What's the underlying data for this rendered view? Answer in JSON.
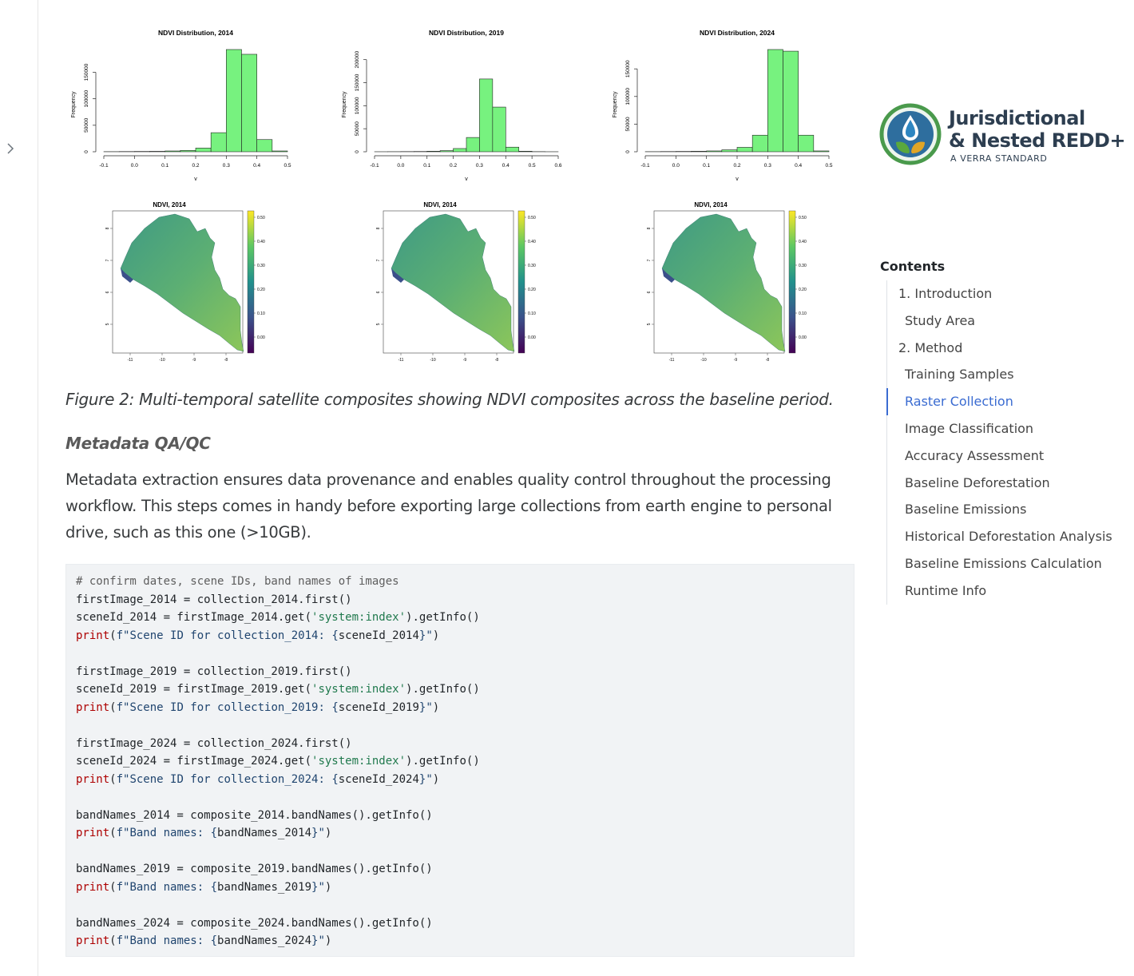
{
  "sidebar_toggle": {
    "icon": "chevron-right-icon",
    "glyph": "›"
  },
  "figures": {
    "histograms": [
      {
        "title": "NDVI Distribution, 2014",
        "ylabel": "Frequency",
        "xlabel": "v",
        "x_ticks": [
          "-0.1",
          "0.0",
          "0.1",
          "0.2",
          "0.3",
          "0.4",
          "0.5"
        ],
        "y_ticks": [
          "0",
          "50000",
          "100000",
          "150000"
        ]
      },
      {
        "title": "NDVI Distribution, 2019",
        "ylabel": "Frequency",
        "xlabel": "v",
        "x_ticks": [
          "-0.1",
          "0.0",
          "0.1",
          "0.2",
          "0.3",
          "0.4",
          "0.5",
          "0.6"
        ],
        "y_ticks": [
          "0",
          "50000",
          "100000",
          "150000",
          "200000"
        ]
      },
      {
        "title": "NDVI Distribution, 2024",
        "ylabel": "Frequency",
        "xlabel": "v",
        "x_ticks": [
          "-0.1",
          "0.0",
          "0.1",
          "0.2",
          "0.3",
          "0.4",
          "0.5"
        ],
        "y_ticks": [
          "0",
          "50000",
          "100000",
          "150000"
        ]
      }
    ],
    "maps": [
      {
        "title": "NDVI, 2014",
        "x_ticks": [
          "-11",
          "-10",
          "-9",
          "-8"
        ],
        "y_ticks": [
          "8",
          "7",
          "6",
          "5"
        ],
        "legend_ticks": [
          "0.50",
          "0.40",
          "0.30",
          "0.20",
          "0.10",
          "0.00"
        ]
      },
      {
        "title": "NDVI, 2014",
        "x_ticks": [
          "-11",
          "-10",
          "-9",
          "-8"
        ],
        "y_ticks": [
          "8",
          "7",
          "6",
          "5"
        ],
        "legend_ticks": [
          "0.50",
          "0.40",
          "0.30",
          "0.20",
          "0.10",
          "0.00"
        ]
      },
      {
        "title": "NDVI, 2014",
        "x_ticks": [
          "-11",
          "-10",
          "-9",
          "-8"
        ],
        "y_ticks": [
          "8",
          "7",
          "6",
          "5"
        ],
        "legend_ticks": [
          "0.50",
          "0.40",
          "0.30",
          "0.20",
          "0.10",
          "0.00"
        ]
      }
    ],
    "colors": {
      "bar_fill": "#77f27f",
      "map_low": "#440154",
      "map_mid": "#3a8d8c",
      "map_high": "#c5df3a"
    }
  },
  "chart_data": [
    {
      "type": "bar",
      "title": "NDVI Distribution, 2014",
      "xlabel": "v",
      "ylabel": "Frequency",
      "bin_edges": [
        -0.1,
        -0.05,
        0.0,
        0.05,
        0.1,
        0.15,
        0.2,
        0.25,
        0.3,
        0.35,
        0.4,
        0.45,
        0.5
      ],
      "values": [
        200,
        400,
        600,
        800,
        1500,
        2500,
        7000,
        36000,
        193000,
        184000,
        23000,
        1500
      ],
      "xlim": [
        -0.1,
        0.5
      ],
      "ylim": [
        0,
        193000
      ]
    },
    {
      "type": "bar",
      "title": "NDVI Distribution, 2019",
      "xlabel": "v",
      "ylabel": "Frequency",
      "bin_edges": [
        -0.1,
        -0.05,
        0.0,
        0.05,
        0.1,
        0.15,
        0.2,
        0.25,
        0.3,
        0.35,
        0.4,
        0.45,
        0.5,
        0.55,
        0.6
      ],
      "values": [
        100,
        200,
        400,
        600,
        1200,
        2500,
        7000,
        31000,
        158000,
        97000,
        10000,
        1200,
        300,
        100
      ],
      "xlim": [
        -0.1,
        0.6
      ],
      "ylim": [
        0,
        222000
      ]
    },
    {
      "type": "bar",
      "title": "NDVI Distribution, 2024",
      "xlabel": "v",
      "ylabel": "Frequency",
      "bin_edges": [
        -0.1,
        -0.05,
        0.0,
        0.05,
        0.1,
        0.15,
        0.2,
        0.25,
        0.3,
        0.35,
        0.4,
        0.45,
        0.5
      ],
      "values": [
        200,
        400,
        600,
        900,
        1500,
        3500,
        8000,
        30000,
        185000,
        182000,
        30000,
        1500
      ],
      "xlim": [
        -0.1,
        0.5
      ],
      "ylim": [
        0,
        185000
      ]
    }
  ],
  "caption": "Figure 2: Multi-temporal satellite composites showing NDVI composites across the baseline period.",
  "section_heading": "Metadata QA/QC",
  "paragraph": "Metadata extraction ensures data provenance and enables quality control throughout the processing workflow. This steps comes in handy before exporting large collections from earth engine to personal drive, such as this one (>10GB).",
  "code_lines": [
    [
      {
        "t": "# confirm dates, scene IDs, band names of images",
        "c": "comment"
      }
    ],
    [
      {
        "t": "firstImage_2014 = collection_2014.first()",
        "c": ""
      }
    ],
    [
      {
        "t": "sceneId_2014 = firstImage_2014.get(",
        "c": ""
      },
      {
        "t": "'system:index'",
        "c": "str"
      },
      {
        "t": ").getInfo()",
        "c": ""
      }
    ],
    [
      {
        "t": "print",
        "c": "print"
      },
      {
        "t": "(",
        "c": ""
      },
      {
        "t": "f\"Scene ID for collection_2014: {",
        "c": "fstr"
      },
      {
        "t": "sceneId_2014",
        "c": ""
      },
      {
        "t": "}\"",
        "c": "fstr"
      },
      {
        "t": ")",
        "c": ""
      }
    ],
    [
      {
        "t": "",
        "c": ""
      }
    ],
    [
      {
        "t": "firstImage_2019 = collection_2019.first()",
        "c": ""
      }
    ],
    [
      {
        "t": "sceneId_2019 = firstImage_2019.get(",
        "c": ""
      },
      {
        "t": "'system:index'",
        "c": "str"
      },
      {
        "t": ").getInfo()",
        "c": ""
      }
    ],
    [
      {
        "t": "print",
        "c": "print"
      },
      {
        "t": "(",
        "c": ""
      },
      {
        "t": "f\"Scene ID for collection_2019: {",
        "c": "fstr"
      },
      {
        "t": "sceneId_2019",
        "c": ""
      },
      {
        "t": "}\"",
        "c": "fstr"
      },
      {
        "t": ")",
        "c": ""
      }
    ],
    [
      {
        "t": "",
        "c": ""
      }
    ],
    [
      {
        "t": "firstImage_2024 = collection_2024.first()",
        "c": ""
      }
    ],
    [
      {
        "t": "sceneId_2024 = firstImage_2024.get(",
        "c": ""
      },
      {
        "t": "'system:index'",
        "c": "str"
      },
      {
        "t": ").getInfo()",
        "c": ""
      }
    ],
    [
      {
        "t": "print",
        "c": "print"
      },
      {
        "t": "(",
        "c": ""
      },
      {
        "t": "f\"Scene ID for collection_2024: {",
        "c": "fstr"
      },
      {
        "t": "sceneId_2024",
        "c": ""
      },
      {
        "t": "}\"",
        "c": "fstr"
      },
      {
        "t": ")",
        "c": ""
      }
    ],
    [
      {
        "t": "",
        "c": ""
      }
    ],
    [
      {
        "t": "bandNames_2014 = composite_2014.bandNames().getInfo()",
        "c": ""
      }
    ],
    [
      {
        "t": "print",
        "c": "print"
      },
      {
        "t": "(",
        "c": ""
      },
      {
        "t": "f\"Band names: {",
        "c": "fstr"
      },
      {
        "t": "bandNames_2014",
        "c": ""
      },
      {
        "t": "}\"",
        "c": "fstr"
      },
      {
        "t": ")",
        "c": ""
      }
    ],
    [
      {
        "t": "",
        "c": ""
      }
    ],
    [
      {
        "t": "bandNames_2019 = composite_2019.bandNames().getInfo()",
        "c": ""
      }
    ],
    [
      {
        "t": "print",
        "c": "print"
      },
      {
        "t": "(",
        "c": ""
      },
      {
        "t": "f\"Band names: {",
        "c": "fstr"
      },
      {
        "t": "bandNames_2019",
        "c": ""
      },
      {
        "t": "}\"",
        "c": "fstr"
      },
      {
        "t": ")",
        "c": ""
      }
    ],
    [
      {
        "t": "",
        "c": ""
      }
    ],
    [
      {
        "t": "bandNames_2024 = composite_2024.bandNames().getInfo()",
        "c": ""
      }
    ],
    [
      {
        "t": "print",
        "c": "print"
      },
      {
        "t": "(",
        "c": ""
      },
      {
        "t": "f\"Band names: {",
        "c": "fstr"
      },
      {
        "t": "bandNames_2024",
        "c": ""
      },
      {
        "t": "}\"",
        "c": "fstr"
      },
      {
        "t": ")",
        "c": ""
      }
    ]
  ],
  "logo": {
    "line1": "Jurisdictional",
    "line2": "& Nested REDD+",
    "line3": "A VERRA STANDARD",
    "colors": {
      "ring": "#4a9a4c",
      "water": "#2e86c1",
      "leaf_left": "#5aa83d",
      "leaf_right": "#e0a526",
      "text": "#2d3e50"
    }
  },
  "toc": {
    "title": "Contents",
    "items": [
      {
        "label": "1. Introduction",
        "level": 1,
        "active": false
      },
      {
        "label": "Study Area",
        "level": 2,
        "active": false
      },
      {
        "label": "2. Method",
        "level": 1,
        "active": false
      },
      {
        "label": "Training Samples",
        "level": 2,
        "active": false
      },
      {
        "label": "Raster Collection",
        "level": 2,
        "active": true
      },
      {
        "label": "Image Classification",
        "level": 2,
        "active": false
      },
      {
        "label": "Accuracy Assessment",
        "level": 2,
        "active": false
      },
      {
        "label": "Baseline Deforestation",
        "level": 2,
        "active": false
      },
      {
        "label": "Baseline Emissions",
        "level": 2,
        "active": false
      },
      {
        "label": "Historical Deforestation Analysis",
        "level": 2,
        "active": false
      },
      {
        "label": "Baseline Emissions Calculation",
        "level": 2,
        "active": false
      },
      {
        "label": "Runtime Info",
        "level": 2,
        "active": false
      }
    ]
  }
}
